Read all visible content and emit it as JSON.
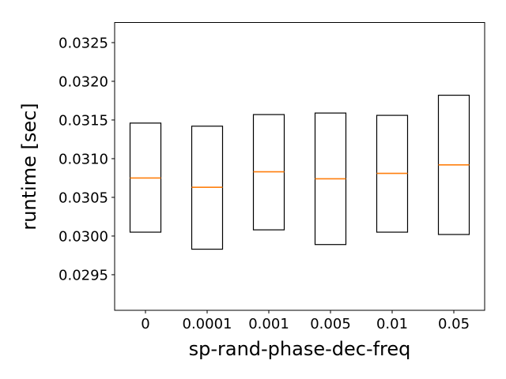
{
  "chart_data": {
    "type": "box",
    "title": "",
    "xlabel": "sp-rand-phase-dec-freq",
    "ylabel": "runtime [sec]",
    "categories": [
      "0",
      "0.0001",
      "0.001",
      "0.005",
      "0.01",
      "0.05"
    ],
    "boxes": [
      {
        "q1": 0.03005,
        "median": 0.03075,
        "q3": 0.03146
      },
      {
        "q1": 0.02983,
        "median": 0.03063,
        "q3": 0.03142
      },
      {
        "q1": 0.03008,
        "median": 0.03083,
        "q3": 0.03157
      },
      {
        "q1": 0.02989,
        "median": 0.03074,
        "q3": 0.03159
      },
      {
        "q1": 0.03005,
        "median": 0.03081,
        "q3": 0.03156
      },
      {
        "q1": 0.03002,
        "median": 0.03092,
        "q3": 0.03182
      }
    ],
    "yticks": [
      "0.0295",
      "0.0300",
      "0.0305",
      "0.0310",
      "0.0315",
      "0.0320",
      "0.0325"
    ],
    "ylim": [
      0.02904,
      0.03276
    ],
    "grid": false,
    "colors": {
      "box": "#000000",
      "median": "#ff7f0e"
    }
  }
}
